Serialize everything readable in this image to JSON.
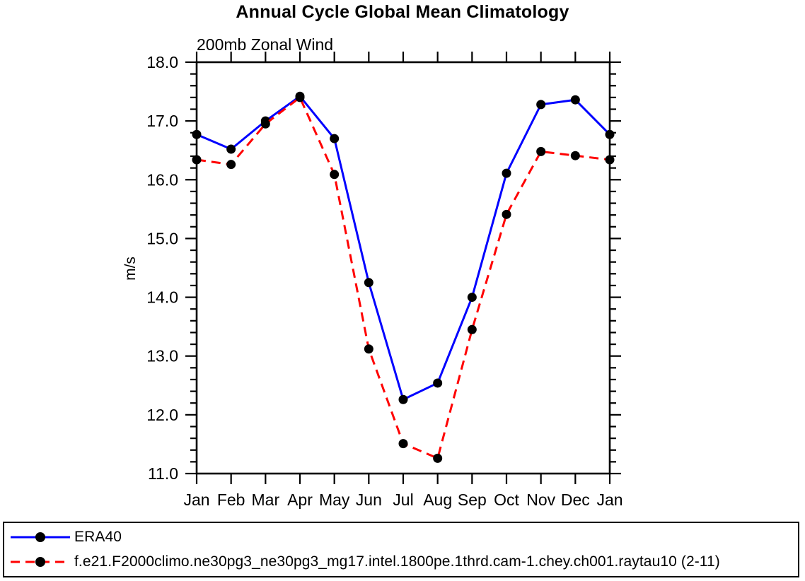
{
  "chart_data": {
    "type": "line",
    "title": "Annual Cycle Global Mean Climatology",
    "subtitle": "200mb Zonal Wind",
    "ylabel": "m/s",
    "xlabel": "",
    "x_tick_labels": [
      "Jan",
      "Feb",
      "Mar",
      "Apr",
      "May",
      "Jun",
      "Jul",
      "Aug",
      "Sep",
      "Oct",
      "Nov",
      "Dec",
      "Jan"
    ],
    "ylim": [
      11.0,
      18.0
    ],
    "ytick_major_step": 1.0,
    "ytick_minor_step": 0.2,
    "ytick_labels": [
      "11.0",
      "12.0",
      "13.0",
      "14.0",
      "15.0",
      "16.0",
      "17.0",
      "18.0"
    ],
    "grid": false,
    "legend_position": "bottom",
    "axis_color": "#000000",
    "series": [
      {
        "name": "ERA40",
        "color": "#0000ff",
        "line_style": "solid",
        "marker": "filled-circle",
        "marker_color": "#000000",
        "values": [
          16.77,
          16.52,
          17.0,
          17.42,
          16.7,
          14.25,
          12.26,
          12.54,
          14.0,
          16.11,
          17.28,
          17.36,
          16.77
        ]
      },
      {
        "name": "f.e21.F2000climo.ne30pg3_ne30pg3_mg17.intel.1800pe.1thrd.cam-1.chey.ch001.raytau10 (2-11)",
        "color": "#ff0000",
        "line_style": "dashed",
        "marker": "filled-circle",
        "marker_color": "#000000",
        "values": [
          16.34,
          16.26,
          16.95,
          17.4,
          16.09,
          13.12,
          11.51,
          11.26,
          13.45,
          15.41,
          16.48,
          16.41,
          16.34
        ]
      }
    ]
  }
}
